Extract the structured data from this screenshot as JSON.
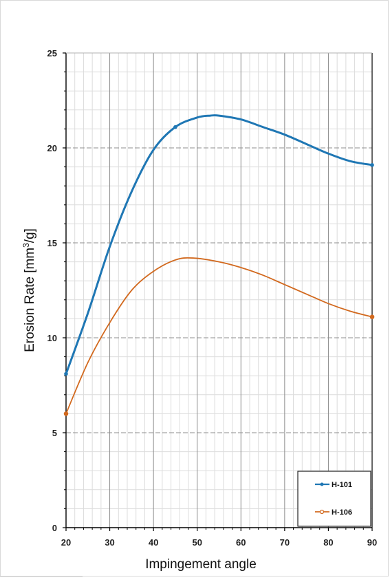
{
  "chart_data": {
    "type": "line",
    "title": "",
    "xlabel": "Impingement angle",
    "ylabel_main": "Erosion Rate [mm",
    "ylabel_sup": "3",
    "ylabel_tail": "/g]",
    "xlim": [
      20,
      90
    ],
    "ylim": [
      0,
      25
    ],
    "x_ticks": [
      "20",
      "30",
      "40",
      "50",
      "60",
      "70",
      "80",
      "90"
    ],
    "y_ticks": [
      "0",
      "5",
      "10",
      "15",
      "20",
      "25"
    ],
    "grid": true,
    "legend_position": "bottom-right",
    "series": [
      {
        "name": "H-101",
        "color": "#1f77b4",
        "x": [
          20,
          45,
          90
        ],
        "y": [
          8.1,
          21.1,
          19.1
        ],
        "curve_x": [
          20,
          25,
          30,
          35,
          40,
          45,
          50,
          53,
          55,
          60,
          65,
          70,
          75,
          80,
          85,
          90
        ],
        "curve_y": [
          8.1,
          11.3,
          14.8,
          17.7,
          19.9,
          21.1,
          21.6,
          21.7,
          21.7,
          21.5,
          21.1,
          20.7,
          20.2,
          19.7,
          19.3,
          19.1
        ]
      },
      {
        "name": "H-106",
        "color": "#d2691e",
        "x": [
          20,
          90
        ],
        "y": [
          6.0,
          11.1
        ],
        "curve_x": [
          20,
          25,
          30,
          35,
          40,
          45,
          49,
          55,
          60,
          65,
          70,
          75,
          80,
          85,
          90
        ],
        "curve_y": [
          6.0,
          8.7,
          10.8,
          12.5,
          13.5,
          14.1,
          14.2,
          14.0,
          13.7,
          13.3,
          12.8,
          12.3,
          11.8,
          11.4,
          11.1
        ]
      }
    ]
  }
}
